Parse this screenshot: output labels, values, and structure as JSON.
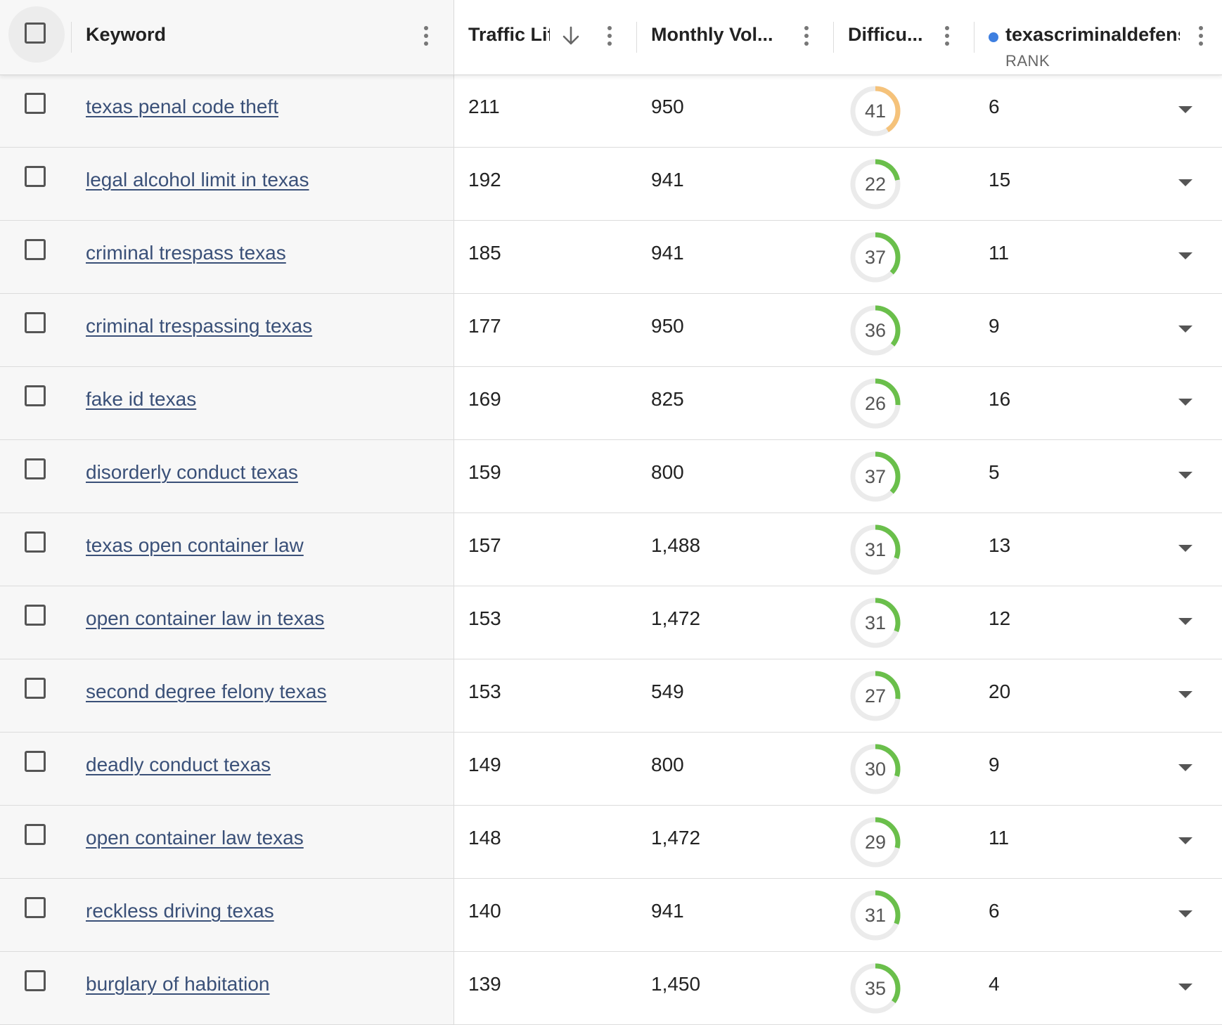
{
  "header": {
    "keyword": "Keyword",
    "traffic": "Traffic Lif",
    "volume": "Monthly Vol...",
    "difficulty": "Difficu...",
    "domain": "texascriminaldefens",
    "rank_sub": "RANK"
  },
  "colors": {
    "difficulty_easy": "#6abf4b",
    "difficulty_medium": "#f5c27a",
    "ring_track": "#ebebeb",
    "domain_dot": "#3e7fe0",
    "link": "#3a5078"
  },
  "icons": {
    "sort": "arrow-down-icon",
    "column_menu": "kebab-menu-icon",
    "expand": "caret-down-icon"
  },
  "rows": [
    {
      "keyword": "texas penal code theft",
      "traffic": "211",
      "volume": "950",
      "difficulty": 41,
      "rank": "6"
    },
    {
      "keyword": "legal alcohol limit in texas",
      "traffic": "192",
      "volume": "941",
      "difficulty": 22,
      "rank": "15"
    },
    {
      "keyword": "criminal trespass texas",
      "traffic": "185",
      "volume": "941",
      "difficulty": 37,
      "rank": "11"
    },
    {
      "keyword": "criminal trespassing texas",
      "traffic": "177",
      "volume": "950",
      "difficulty": 36,
      "rank": "9"
    },
    {
      "keyword": "fake id texas",
      "traffic": "169",
      "volume": "825",
      "difficulty": 26,
      "rank": "16"
    },
    {
      "keyword": "disorderly conduct texas",
      "traffic": "159",
      "volume": "800",
      "difficulty": 37,
      "rank": "5"
    },
    {
      "keyword": "texas open container law",
      "traffic": "157",
      "volume": "1,488",
      "difficulty": 31,
      "rank": "13"
    },
    {
      "keyword": "open container law in texas",
      "traffic": "153",
      "volume": "1,472",
      "difficulty": 31,
      "rank": "12"
    },
    {
      "keyword": "second degree felony texas",
      "traffic": "153",
      "volume": "549",
      "difficulty": 27,
      "rank": "20"
    },
    {
      "keyword": "deadly conduct texas",
      "traffic": "149",
      "volume": "800",
      "difficulty": 30,
      "rank": "9"
    },
    {
      "keyword": "open container law texas",
      "traffic": "148",
      "volume": "1,472",
      "difficulty": 29,
      "rank": "11"
    },
    {
      "keyword": "reckless driving texas",
      "traffic": "140",
      "volume": "941",
      "difficulty": 31,
      "rank": "6"
    },
    {
      "keyword": "burglary of habitation",
      "traffic": "139",
      "volume": "1,450",
      "difficulty": 35,
      "rank": "4"
    }
  ]
}
